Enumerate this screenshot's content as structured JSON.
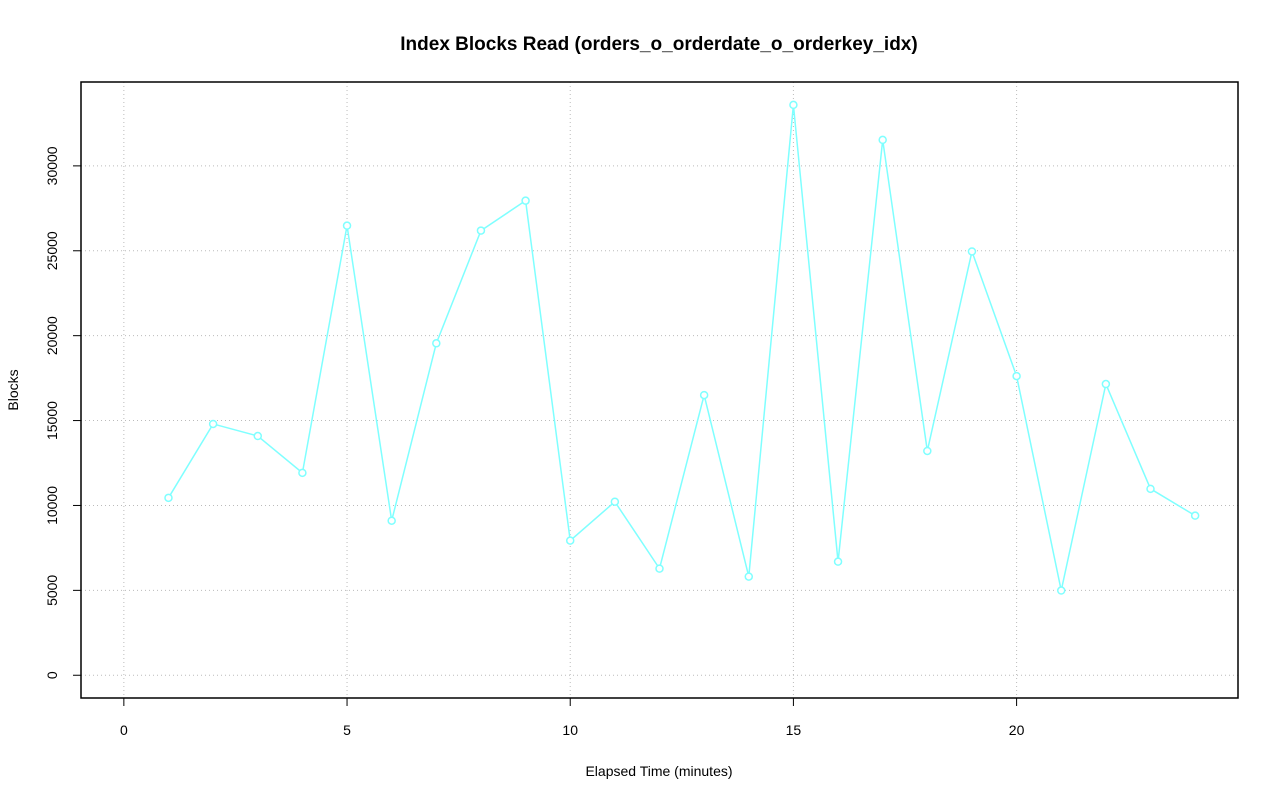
{
  "chart_data": {
    "type": "line",
    "title": "Index Blocks Read (orders_o_orderdate_o_orderkey_idx)",
    "x_label": "Elapsed Time (minutes)",
    "y_label": "Blocks",
    "x": [
      1,
      2,
      3,
      4,
      5,
      6,
      7,
      8,
      9,
      10,
      11,
      12,
      13,
      14,
      15,
      16,
      17,
      18,
      19,
      20,
      21,
      22,
      23,
      24
    ],
    "series": [
      {
        "name": "Blocks",
        "color": "#7fffff",
        "values": [
          10450,
          14800,
          14090,
          11920,
          26480,
          9100,
          19550,
          26190,
          27950,
          7930,
          10220,
          6280,
          16500,
          5810,
          33590,
          6690,
          31530,
          13210,
          24960,
          17620,
          4990,
          17150,
          10980,
          9400
        ]
      }
    ],
    "xlim": [
      -0.96,
      24.96
    ],
    "xticks": [
      0,
      5,
      10,
      15,
      20
    ],
    "ylim": [
      -1340,
      34940
    ],
    "yticks": [
      0,
      5000,
      10000,
      15000,
      20000,
      25000,
      30000
    ],
    "grid": true
  }
}
